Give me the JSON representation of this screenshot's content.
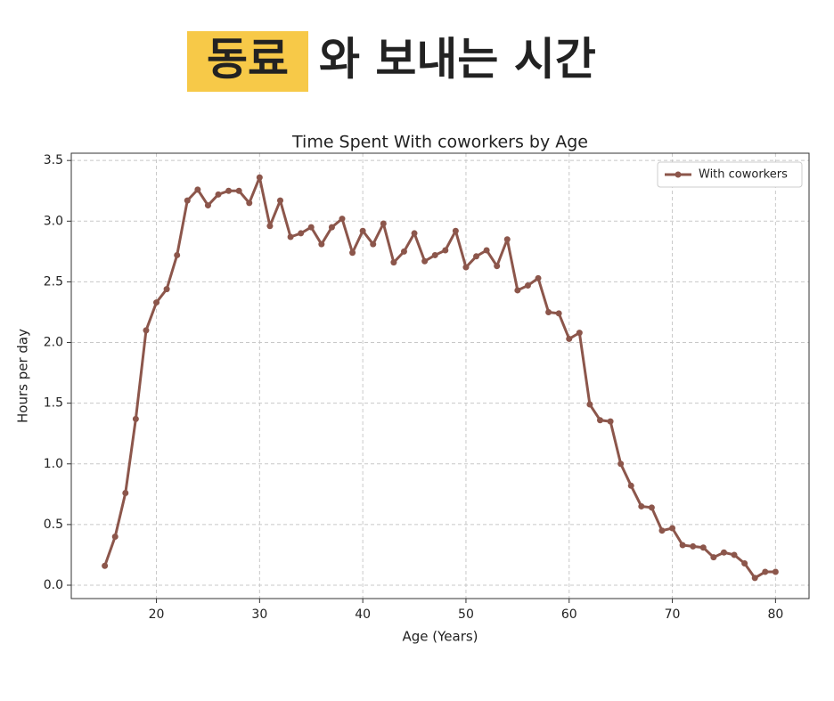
{
  "heading": {
    "highlight": "동료",
    "rest": "와 보내는 시간"
  },
  "chart_data": {
    "type": "line",
    "title": "Time Spent With coworkers by Age",
    "x_label": "Age (Years)",
    "y_label": "Hours per day",
    "x": [
      15,
      16,
      17,
      18,
      19,
      20,
      21,
      22,
      23,
      24,
      25,
      26,
      27,
      28,
      29,
      30,
      31,
      32,
      33,
      34,
      35,
      36,
      37,
      38,
      39,
      40,
      41,
      42,
      43,
      44,
      45,
      46,
      47,
      48,
      49,
      50,
      51,
      52,
      53,
      54,
      55,
      56,
      57,
      58,
      59,
      60,
      61,
      62,
      63,
      64,
      65,
      66,
      67,
      68,
      69,
      70,
      71,
      72,
      73,
      74,
      75,
      76,
      77,
      78,
      79,
      80
    ],
    "series": [
      {
        "name": "With coworkers",
        "color": "#8c564b",
        "values": [
          0.16,
          0.4,
          0.76,
          1.37,
          2.1,
          2.33,
          2.44,
          2.72,
          3.17,
          3.26,
          3.13,
          3.22,
          3.25,
          3.25,
          3.15,
          3.36,
          2.96,
          3.17,
          2.87,
          2.9,
          2.95,
          2.81,
          2.95,
          3.02,
          2.74,
          2.92,
          2.81,
          2.98,
          2.66,
          2.75,
          2.9,
          2.67,
          2.72,
          2.76,
          2.92,
          2.62,
          2.71,
          2.76,
          2.63,
          2.85,
          2.43,
          2.47,
          2.53,
          2.25,
          2.24,
          2.03,
          2.08,
          1.49,
          1.36,
          1.35,
          1.0,
          0.82,
          0.65,
          0.64,
          0.45,
          0.47,
          0.33,
          0.32,
          0.31,
          0.23,
          0.27,
          0.25,
          0.18,
          0.06,
          0.11,
          0.11
        ]
      }
    ],
    "xlim": [
      11.75,
      83.25
    ],
    "xticks": [
      20,
      30,
      40,
      50,
      60,
      70,
      80
    ],
    "ylim": [
      -0.11,
      3.56
    ],
    "yticks": [
      {
        "value": 0,
        "label": "0.0"
      },
      0.5,
      {
        "value": 1,
        "label": "1.0"
      },
      1.5,
      {
        "value": 2,
        "label": "2.0"
      },
      2.5,
      {
        "value": 3,
        "label": "3.0"
      },
      3.5
    ],
    "grid": true,
    "legend": "upper right"
  }
}
